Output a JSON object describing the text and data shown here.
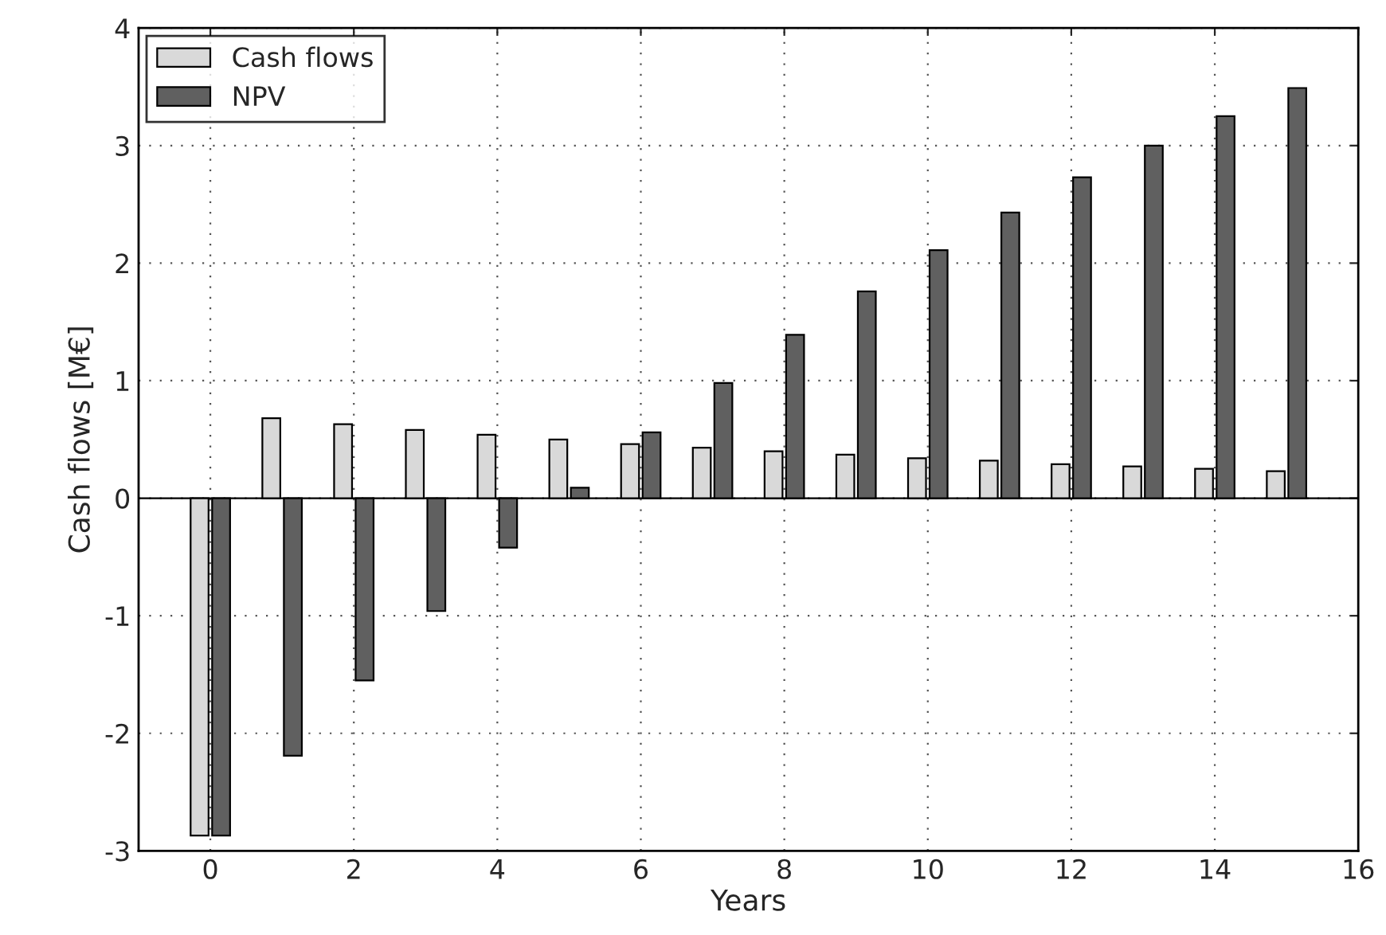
{
  "chart_data": {
    "type": "bar",
    "xlabel": "Years",
    "ylabel": "Cash flows [M€]",
    "x": [
      0,
      1,
      2,
      3,
      4,
      5,
      6,
      7,
      8,
      9,
      10,
      11,
      12,
      13,
      14,
      15
    ],
    "xlim": [
      -1,
      16
    ],
    "xticks": [
      0,
      2,
      4,
      6,
      8,
      10,
      12,
      14,
      16
    ],
    "ylim": [
      -3,
      4
    ],
    "yticks": [
      -3,
      -2,
      -1,
      0,
      1,
      2,
      3,
      4
    ],
    "grid": true,
    "legend": "top left",
    "series": [
      {
        "name": "Cash flows",
        "color": "#d9d9d9",
        "values": [
          -2.87,
          0.68,
          0.63,
          0.58,
          0.54,
          0.5,
          0.46,
          0.43,
          0.4,
          0.37,
          0.34,
          0.32,
          0.29,
          0.27,
          0.25,
          0.23
        ]
      },
      {
        "name": "NPV",
        "color": "#606060",
        "values": [
          -2.87,
          -2.19,
          -1.55,
          -0.96,
          -0.42,
          0.09,
          0.56,
          0.98,
          1.39,
          1.76,
          2.11,
          2.43,
          2.73,
          3.0,
          3.25,
          3.49
        ]
      }
    ]
  }
}
